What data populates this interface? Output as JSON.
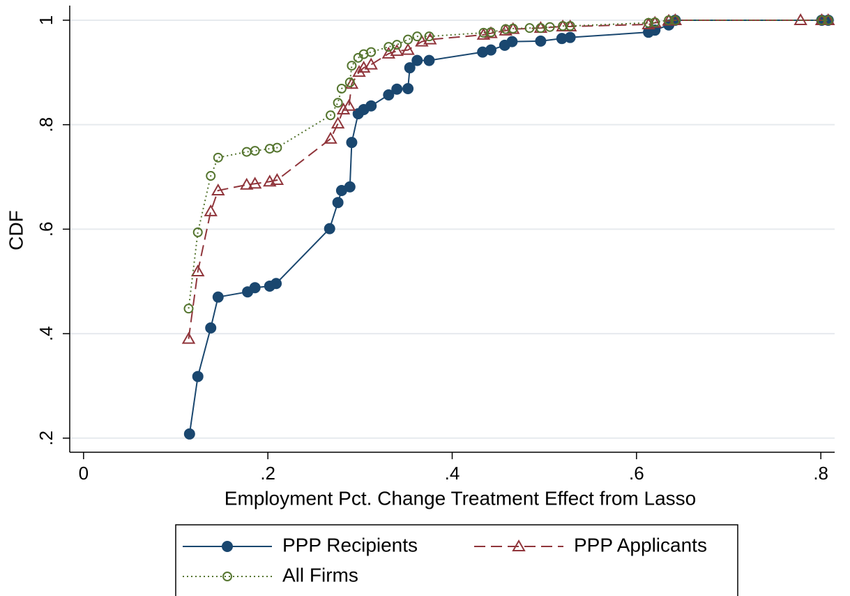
{
  "chart_data": {
    "type": "line",
    "xlabel": "Employment Pct. Change Treatment Effect from Lasso",
    "ylabel": "CDF",
    "xlim": [
      -0.015,
      0.815
    ],
    "ylim": [
      0.173,
      1.028
    ],
    "xticks": [
      0,
      {
        "value": 0.2,
        "label": ".2"
      },
      {
        "value": 0.4,
        "label": ".4"
      },
      {
        "value": 0.6,
        "label": ".6"
      },
      {
        "value": 0.8,
        "label": ".8"
      }
    ],
    "yticks": [
      {
        "value": 0.2,
        "label": ".2"
      },
      {
        "value": 0.4,
        "label": ".4"
      },
      {
        "value": 0.6,
        "label": ".6"
      },
      {
        "value": 0.8,
        "label": ".8"
      },
      1
    ],
    "grid": true,
    "legend_position": "bottom",
    "series": [
      {
        "name": "PPP Recipients",
        "color": "#1a476f",
        "dash": "solid",
        "marker": "circle-filled",
        "x": [
          0.115,
          0.124,
          0.138,
          0.146,
          0.178,
          0.186,
          0.202,
          0.209,
          0.267,
          0.276,
          0.28,
          0.289,
          0.291,
          0.298,
          0.304,
          0.312,
          0.331,
          0.34,
          0.352,
          0.354,
          0.362,
          0.375,
          0.433,
          0.442,
          0.457,
          0.465,
          0.496,
          0.519,
          0.528,
          0.613,
          0.62,
          0.635,
          0.642,
          0.801,
          0.808
        ],
        "values": [
          0.208,
          0.318,
          0.411,
          0.47,
          0.48,
          0.488,
          0.491,
          0.496,
          0.601,
          0.651,
          0.674,
          0.681,
          0.766,
          0.821,
          0.829,
          0.836,
          0.857,
          0.868,
          0.869,
          0.909,
          0.923,
          0.923,
          0.939,
          0.943,
          0.952,
          0.959,
          0.96,
          0.965,
          0.967,
          0.977,
          0.981,
          0.991,
          1,
          1,
          1
        ]
      },
      {
        "name": "PPP Applicants",
        "color": "#90353b",
        "dash": "dashed",
        "marker": "triangle",
        "x": [
          0.114,
          0.124,
          0.138,
          0.146,
          0.177,
          0.186,
          0.202,
          0.21,
          0.268,
          0.276,
          0.282,
          0.288,
          0.291,
          0.299,
          0.304,
          0.312,
          0.331,
          0.34,
          0.352,
          0.367,
          0.376,
          0.434,
          0.442,
          0.458,
          0.466,
          0.496,
          0.52,
          0.528,
          0.613,
          0.62,
          0.635,
          0.642,
          0.778,
          0.801,
          0.808
        ],
        "values": [
          0.39,
          0.519,
          0.634,
          0.674,
          0.685,
          0.687,
          0.691,
          0.694,
          0.773,
          0.802,
          0.829,
          0.836,
          0.878,
          0.901,
          0.909,
          0.915,
          0.936,
          0.941,
          0.943,
          0.959,
          0.963,
          0.972,
          0.975,
          0.98,
          0.983,
          0.985,
          0.988,
          0.988,
          0.992,
          0.995,
          0.999,
          1,
          1,
          1,
          1
        ]
      },
      {
        "name": "All Firms",
        "color": "#55752f",
        "dash": "dotted",
        "marker": "circle",
        "x": [
          0.114,
          0.124,
          0.138,
          0.146,
          0.177,
          0.186,
          0.202,
          0.21,
          0.268,
          0.276,
          0.28,
          0.289,
          0.291,
          0.298,
          0.304,
          0.312,
          0.331,
          0.34,
          0.352,
          0.362,
          0.375,
          0.434,
          0.442,
          0.458,
          0.466,
          0.484,
          0.496,
          0.506,
          0.52,
          0.528,
          0.613,
          0.62,
          0.635,
          0.642,
          0.801,
          0.808
        ],
        "values": [
          0.448,
          0.594,
          0.702,
          0.737,
          0.748,
          0.75,
          0.754,
          0.756,
          0.818,
          0.842,
          0.869,
          0.881,
          0.913,
          0.928,
          0.935,
          0.939,
          0.949,
          0.953,
          0.963,
          0.969,
          0.969,
          0.976,
          0.977,
          0.983,
          0.984,
          0.985,
          0.985,
          0.987,
          0.989,
          0.989,
          0.995,
          0.996,
          1,
          1,
          1,
          1
        ]
      }
    ]
  }
}
